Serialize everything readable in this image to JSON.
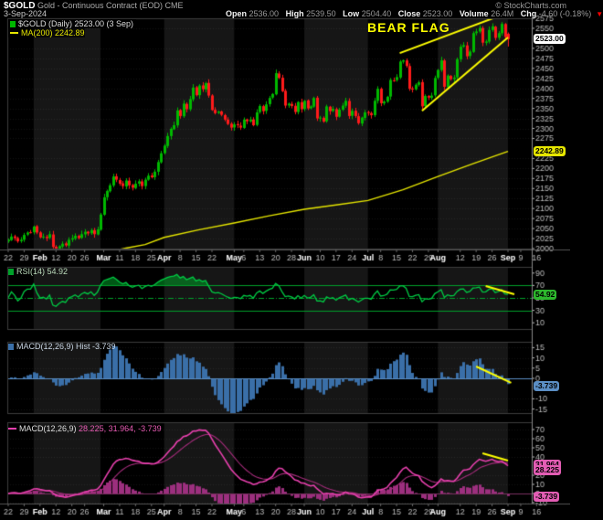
{
  "header": {
    "symbol": "$GOLD",
    "name": "Gold - Continuous Contract (EOD)",
    "exchange": "CME",
    "copyright": "© StockCharts.com",
    "date": "3-Sep-2024",
    "quote": [
      {
        "l": "Open",
        "v": "2536.00"
      },
      {
        "l": "High",
        "v": "2539.50"
      },
      {
        "l": "Low",
        "v": "2504.40"
      },
      {
        "l": "Close",
        "v": "2523.00"
      },
      {
        "l": "Volume",
        "v": "26.4M"
      },
      {
        "l": "Chg",
        "v": "-4.60 (-0.18%)"
      }
    ],
    "down_icon": "▼"
  },
  "annotation_label": "BEAR FLAG",
  "colors": {
    "up": "#00b800",
    "down": "#ff1a1a",
    "ma": "#e6e600",
    "rsi": "#00cc44",
    "rsi_guide": "#00a02a",
    "rsi_fill": "rgba(0,160,40,0.55)",
    "hist_bar": "#3a6fa8",
    "hist_edge": "#5b8ec4",
    "macd_line": "#e840ae",
    "macd_signal": "#a62c7c",
    "macd_hist": "#9c2f7e",
    "annotation": "#ffff00",
    "band": "#161616",
    "axis_text": "#bbbbbb",
    "tag_close_bg": "#ffffff",
    "tag_ma_bg": "#e6e600",
    "tag_rsi_bg": "#2db82d",
    "tag_hist_bg": "#5b8ec4",
    "tag_macd_bg": "#e35db4"
  },
  "chart_data": [
    {
      "type": "candlestick",
      "title": "$GOLD (Daily)",
      "legend1": "$GOLD (Daily) 2523.00 (3 Sep)",
      "legend2": "MA(200) 2242.89",
      "ylim": [
        2000,
        2575
      ],
      "yticks": [
        2575,
        2550,
        2500,
        2475,
        2450,
        2425,
        2400,
        2375,
        2350,
        2325,
        2300,
        2275,
        2225,
        2200,
        2175,
        2150,
        2125,
        2100,
        2075,
        2050,
        2025,
        2000
      ],
      "close_tag": "2523.00",
      "ma_tag": "2242.89",
      "close_tag_value": 2523.0,
      "ma_tag_value": 2242.89,
      "last_candle_ohlc": [
        2536.0,
        2539.5,
        2504.4,
        2523.0
      ],
      "closes": [
        2022,
        2030,
        2026,
        2018,
        2022,
        2034,
        2040,
        2040,
        2055,
        2040,
        2028,
        2030,
        2026,
        2036,
        2004,
        1998,
        2006,
        2012,
        2008,
        2022,
        2026,
        2032,
        2026,
        2036,
        2042,
        2038,
        2046,
        2036,
        2048,
        2085,
        2128,
        2144,
        2158,
        2180,
        2172,
        2162,
        2156,
        2170,
        2158,
        2152,
        2162,
        2168,
        2156,
        2172,
        2182,
        2178,
        2192,
        2216,
        2238,
        2257,
        2281,
        2299,
        2308,
        2345,
        2331,
        2362,
        2348,
        2373,
        2402,
        2383,
        2407,
        2398,
        2413,
        2382,
        2346,
        2338,
        2342,
        2334,
        2322,
        2311,
        2302,
        2310,
        2308,
        2302,
        2322,
        2318,
        2322,
        2308,
        2340,
        2356,
        2343,
        2360,
        2376,
        2386,
        2438,
        2426,
        2393,
        2357,
        2362,
        2356,
        2341,
        2366,
        2348,
        2369,
        2350,
        2355,
        2376,
        2325,
        2327,
        2317,
        2355,
        2343,
        2349,
        2329,
        2347,
        2357,
        2369,
        2331,
        2344,
        2331,
        2313,
        2327,
        2340,
        2339,
        2333,
        2369,
        2399,
        2363,
        2367,
        2379,
        2421,
        2420,
        2428,
        2467,
        2470,
        2456,
        2399,
        2397,
        2409,
        2415,
        2355,
        2381,
        2377,
        2382,
        2426,
        2446,
        2470,
        2404,
        2432,
        2423,
        2427,
        2473,
        2504,
        2508,
        2480,
        2492,
        2538,
        2542,
        2551,
        2514,
        2517,
        2546,
        2555,
        2526,
        2538,
        2561,
        2528,
        2523
      ],
      "ma200_points": [
        [
          31,
          1992
        ],
        [
          37,
          2001
        ],
        [
          43,
          2010
        ],
        [
          49,
          2028
        ],
        [
          60,
          2047
        ],
        [
          71,
          2064
        ],
        [
          82,
          2082
        ],
        [
          93,
          2098
        ],
        [
          103,
          2109
        ],
        [
          113,
          2120
        ],
        [
          124,
          2147
        ],
        [
          135,
          2180
        ],
        [
          146,
          2212
        ],
        [
          157,
          2242.89
        ]
      ],
      "month_starts": {
        "Feb": 8,
        "Mar": 29,
        "Apr": 49,
        "May": 71,
        "Jun": 93,
        "Jul": 113,
        "Aug": 135,
        "Sep": 157
      },
      "shaded_months": [
        "Feb",
        "Apr",
        "Jun",
        "Aug"
      ],
      "x_labels": [
        {
          "t": "22",
          "i": 0
        },
        {
          "t": "29",
          "i": 5
        },
        {
          "t": "Feb",
          "i": 10,
          "b": 1
        },
        {
          "t": "12",
          "i": 15
        },
        {
          "t": "20",
          "i": 20
        },
        {
          "t": "26",
          "i": 24
        },
        {
          "t": "Mar",
          "i": 30,
          "b": 1
        },
        {
          "t": "11",
          "i": 35
        },
        {
          "t": "18",
          "i": 40
        },
        {
          "t": "25",
          "i": 45
        },
        {
          "t": "Apr",
          "i": 49,
          "b": 1
        },
        {
          "t": "8",
          "i": 54
        },
        {
          "t": "15",
          "i": 59
        },
        {
          "t": "22",
          "i": 64
        },
        {
          "t": "May",
          "i": 71,
          "b": 1
        },
        {
          "t": "6",
          "i": 74
        },
        {
          "t": "13",
          "i": 79
        },
        {
          "t": "20",
          "i": 84
        },
        {
          "t": "28",
          "i": 89
        },
        {
          "t": "Jun",
          "i": 93,
          "b": 1
        },
        {
          "t": "10",
          "i": 98
        },
        {
          "t": "17",
          "i": 103
        },
        {
          "t": "24",
          "i": 108
        },
        {
          "t": "Jul",
          "i": 113,
          "b": 1
        },
        {
          "t": "8",
          "i": 117
        },
        {
          "t": "15",
          "i": 122
        },
        {
          "t": "22",
          "i": 127
        },
        {
          "t": "29",
          "i": 132
        },
        {
          "t": "Aug",
          "i": 135,
          "b": 1
        },
        {
          "t": "12",
          "i": 142
        },
        {
          "t": "19",
          "i": 147
        },
        {
          "t": "26",
          "i": 152
        },
        {
          "t": "Sep",
          "i": 157,
          "b": 1
        },
        {
          "t": "9",
          "i": 161
        },
        {
          "t": "16",
          "i": 166
        }
      ],
      "flag_lines_idx_price": [
        [
          [
            123,
            2488
          ],
          [
            156,
            2586
          ]
        ],
        [
          [
            130,
            2344
          ],
          [
            157,
            2527
          ]
        ]
      ]
    },
    {
      "type": "line",
      "title": "RSI(14)",
      "legend_label": "RSI(14)",
      "legend_value": "54.92",
      "tag": "54.92",
      "tag_value": 54.92,
      "ylim": [
        0,
        100
      ],
      "yticks": [
        90,
        70,
        50,
        30,
        10
      ],
      "guides": {
        "overbought": 70,
        "midline": 50,
        "oversold": 30
      },
      "trendline_idx_value": [
        [
          150,
          69
        ],
        [
          159,
          56
        ]
      ]
    },
    {
      "type": "bar",
      "title": "MACD(12,26,9) Histogram",
      "legend_label": "MACD(12,26,9) Hist",
      "legend_value": "-3.739",
      "tag": "-3.739",
      "tag_value": -3.739,
      "ylim": [
        -17.5,
        17.5
      ],
      "yticks": [
        15,
        10,
        5,
        0,
        -10,
        -15
      ],
      "trendline_idx_value": [
        [
          147,
          5.8
        ],
        [
          158,
          -2.2
        ]
      ]
    },
    {
      "type": "line+bar",
      "title": "MACD(12,26,9)",
      "legend_label": "MACD(12,26,9)",
      "legend_values": "28.225, 31.964, -3.739",
      "tags": {
        "macd": "28.225",
        "signal": "31.964",
        "hist": "-3.739"
      },
      "tag_values": {
        "macd": 28.225,
        "signal": 31.964,
        "hist": -3.739
      },
      "ylim": [
        -11,
        78
      ],
      "yticks": [
        70,
        60,
        50,
        40,
        20,
        10,
        0,
        -10
      ],
      "trendline_idx_value": [
        [
          149,
          44
        ],
        [
          157,
          36
        ]
      ]
    }
  ]
}
